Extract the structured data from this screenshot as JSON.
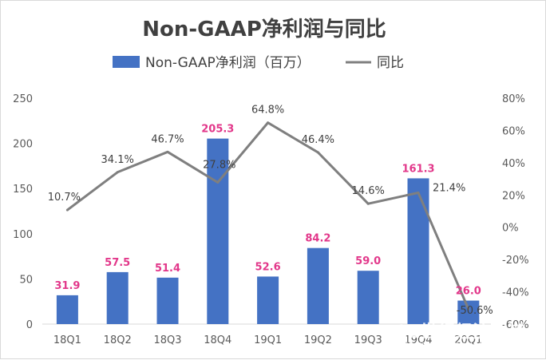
{
  "chart_data": {
    "type": "bar",
    "title": "Non-GAAP净利润与同比",
    "categories": [
      "18Q1",
      "18Q2",
      "18Q3",
      "18Q4",
      "19Q1",
      "19Q2",
      "19Q3",
      "19Q4",
      "20Q1"
    ],
    "series": [
      {
        "name": "Non-GAAP净利润（百万）",
        "type": "bar",
        "axis": "left",
        "color": "#4472c4",
        "values": [
          31.9,
          57.5,
          51.4,
          205.3,
          52.6,
          84.2,
          59.0,
          161.3,
          26.0
        ],
        "labels": [
          "31.9",
          "57.5",
          "51.4",
          "205.3",
          "52.6",
          "84.2",
          "59.0",
          "161.3",
          "26.0"
        ]
      },
      {
        "name": "同比",
        "type": "line",
        "axis": "right",
        "color": "#7f7f7f",
        "values": [
          10.7,
          34.1,
          46.7,
          27.8,
          64.8,
          46.4,
          14.6,
          21.4,
          -50.6
        ],
        "labels": [
          "10.7%",
          "34.1%",
          "46.7%",
          "27.8%",
          "64.8%",
          "46.4%",
          "14.6%",
          "21.4%",
          "-50.6%"
        ]
      }
    ],
    "y_left": {
      "min": 0,
      "max": 250,
      "ticks": [
        "0",
        "50",
        "100",
        "150",
        "200",
        "250"
      ],
      "tick_values": [
        0,
        50,
        100,
        150,
        200,
        250
      ]
    },
    "y_right": {
      "min": -60,
      "max": 80,
      "ticks": [
        "-60%",
        "-40%",
        "-20%",
        "0%",
        "20%",
        "40%",
        "60%",
        "80%"
      ],
      "tick_values": [
        -60,
        -40,
        -20,
        0,
        20,
        40,
        60,
        80
      ]
    },
    "legend_position": "top",
    "grid": false,
    "bar_label_color": "#e2378a"
  },
  "watermark": {
    "main": "21世纪经济报道",
    "sub": "21ST CENTURY BUSINESS HERALD"
  }
}
